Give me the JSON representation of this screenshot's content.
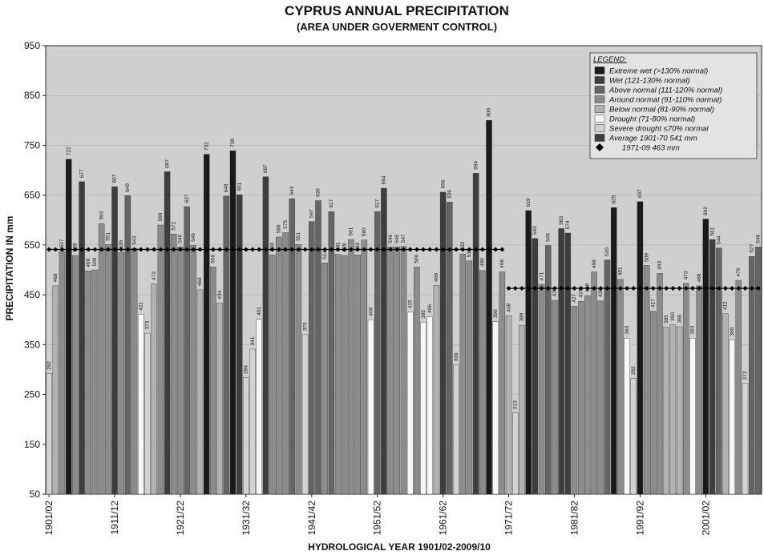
{
  "chart_data": {
    "type": "bar",
    "title": "CYPRUS ANNUAL PRECIPITATION",
    "subtitle": "(AREA UNDER GOVERMENT CONTROL)",
    "xlabel": "HYDROLOGICAL YEAR 1901/02-2009/10",
    "ylabel": "PRECIPITATION IN mm",
    "ylim": [
      50,
      950
    ],
    "yticks": [
      50,
      150,
      250,
      350,
      450,
      550,
      650,
      750,
      850,
      950
    ],
    "xtick_labels": [
      "1901/02",
      "1911/12",
      "1921/22",
      "1931/32",
      "1941/42",
      "1951/52",
      "1961/62",
      "1971/72",
      "1981/82",
      "1991/92",
      "2001/02"
    ],
    "start_year": 1901,
    "values": [
      292,
      468,
      537,
      722,
      529,
      677,
      498,
      500,
      593,
      551,
      667,
      535,
      649,
      543,
      411,
      373,
      472,
      590,
      697,
      572,
      546,
      627,
      549,
      460,
      732,
      506,
      434,
      648,
      739,
      651,
      284,
      341,
      401,
      687,
      530,
      566,
      575,
      643,
      551,
      370,
      597,
      639,
      514,
      617,
      531,
      529,
      561,
      530,
      560,
      400,
      617,
      664,
      546,
      546,
      547,
      415,
      506,
      395,
      406,
      469,
      656,
      636,
      309,
      532,
      518,
      694,
      499,
      800,
      396,
      496,
      408,
      213,
      389,
      619,
      563,
      471,
      549,
      439,
      583,
      574,
      427,
      437,
      448,
      496,
      438,
      520,
      625,
      481,
      363,
      282,
      637,
      509,
      417,
      493,
      385,
      390,
      386,
      473,
      363,
      468,
      602,
      561,
      544,
      412,
      360,
      479,
      272,
      527,
      546
    ],
    "category_colors": {
      "extreme_wet": "#1a1a1a",
      "wet": "#3e3e3e",
      "above_normal": "#656565",
      "around_normal": "#8c8c8c",
      "below_normal": "#b2b2b2",
      "drought": "#f7f7f7",
      "severe_drought": "#d2d2d2"
    },
    "averages": [
      {
        "label": "Average 1901-70 541 mm",
        "value": 541,
        "from_year": 1901,
        "to_year": 1970
      },
      {
        "label": "1971-09 463 mm",
        "value": 463,
        "from_year": 1971,
        "to_year": 2009
      }
    ],
    "legend": {
      "title": "LEGEND:",
      "placement": "top-right",
      "entries": [
        {
          "label": "Extreme wet (>130% normal)",
          "swatch": "extreme_wet"
        },
        {
          "label": "Wet (121-130% normal)",
          "swatch": "wet"
        },
        {
          "label": "Above normal (111-120% normal)",
          "swatch": "above_normal"
        },
        {
          "label": "Around normal (91-110% normal)",
          "swatch": "around_normal"
        },
        {
          "label": "Below normal (81-90% normal)",
          "swatch": "below_normal"
        },
        {
          "label": "Drought (71-80% normal)",
          "swatch": "drought"
        },
        {
          "label": "Severe drought ≤70% normal",
          "swatch": "severe_drought"
        },
        {
          "label": "Average 1901-70 541 mm",
          "swatch": "wet"
        },
        {
          "label": "1971-09 463 mm",
          "swatch": "diamond"
        }
      ]
    },
    "colors": {
      "plot_background": "#cfcfcf",
      "average_line": "#000000",
      "grid": "#9a9a9a"
    }
  }
}
